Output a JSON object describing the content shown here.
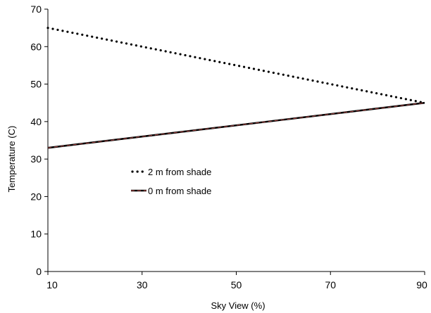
{
  "chart_data": {
    "type": "line",
    "title": "",
    "xlabel": "Sky View (%)",
    "ylabel": "Temperature (C)",
    "xlim": [
      10,
      90
    ],
    "ylim": [
      0,
      70
    ],
    "xticks": [
      10,
      30,
      50,
      70,
      90
    ],
    "yticks": [
      0,
      10,
      20,
      30,
      40,
      50,
      60,
      70
    ],
    "grid": false,
    "legend_position": "left-center",
    "series": [
      {
        "name": "2 m from shade",
        "style": "dotted",
        "color": "#000000",
        "x": [
          10,
          90
        ],
        "y": [
          65,
          45
        ]
      },
      {
        "name": "0 m from shade",
        "style": "solid",
        "color": "#000000",
        "accent_color": "#c0504d",
        "x": [
          10,
          90
        ],
        "y": [
          33,
          45
        ]
      }
    ]
  }
}
